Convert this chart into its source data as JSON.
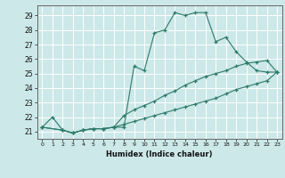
{
  "xlabel": "Humidex (Indice chaleur)",
  "ylabel": "",
  "background_color": "#cce8e8",
  "grid_color": "#ffffff",
  "line_color": "#2d7a6a",
  "xlim": [
    -0.5,
    23.5
  ],
  "ylim": [
    20.5,
    29.7
  ],
  "xticks": [
    0,
    1,
    2,
    3,
    4,
    5,
    6,
    7,
    8,
    9,
    10,
    11,
    12,
    13,
    14,
    15,
    16,
    17,
    18,
    19,
    20,
    21,
    22,
    23
  ],
  "yticks": [
    21,
    22,
    23,
    24,
    25,
    26,
    27,
    28,
    29
  ],
  "series": [
    {
      "x": [
        0,
        1,
        2,
        3,
        4,
        5,
        6,
        7,
        8,
        9,
        10,
        11,
        12,
        13,
        14,
        15,
        16,
        17,
        18,
        19,
        20,
        21,
        22,
        23
      ],
      "y": [
        21.3,
        22.0,
        21.1,
        20.9,
        21.1,
        21.2,
        21.2,
        21.3,
        21.3,
        25.5,
        25.2,
        27.8,
        28.0,
        29.2,
        29.0,
        29.2,
        29.2,
        27.2,
        27.5,
        26.5,
        25.8,
        25.2,
        25.1,
        25.1
      ]
    },
    {
      "x": [
        0,
        2,
        3,
        4,
        5,
        6,
        7,
        8,
        9,
        10,
        11,
        12,
        13,
        14,
        15,
        16,
        17,
        18,
        19,
        20,
        21,
        22,
        23
      ],
      "y": [
        21.3,
        21.1,
        20.9,
        21.1,
        21.2,
        21.2,
        21.3,
        22.1,
        22.5,
        22.8,
        23.1,
        23.5,
        23.8,
        24.2,
        24.5,
        24.8,
        25.0,
        25.2,
        25.5,
        25.7,
        25.8,
        25.9,
        25.1
      ]
    },
    {
      "x": [
        0,
        2,
        3,
        4,
        5,
        6,
        7,
        8,
        9,
        10,
        11,
        12,
        13,
        14,
        15,
        16,
        17,
        18,
        19,
        20,
        21,
        22,
        23
      ],
      "y": [
        21.3,
        21.1,
        20.9,
        21.1,
        21.2,
        21.2,
        21.3,
        21.5,
        21.7,
        21.9,
        22.1,
        22.3,
        22.5,
        22.7,
        22.9,
        23.1,
        23.3,
        23.6,
        23.9,
        24.1,
        24.3,
        24.5,
        25.1
      ]
    }
  ]
}
